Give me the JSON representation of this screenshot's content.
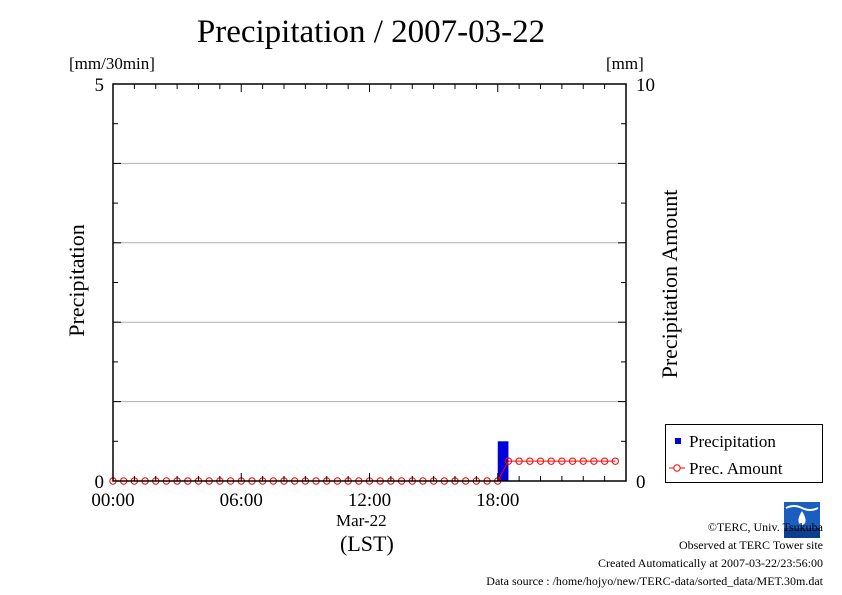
{
  "title": "Precipitation / 2007-03-22",
  "left_unit": "[mm/30min]",
  "right_unit": "[mm]",
  "left_axis_title": "Precipitation",
  "right_axis_title": "Precipitation Amount",
  "x_date_label": "Mar-22",
  "x_tz_label": "(LST)",
  "legend": {
    "precipitation": "Precipitation",
    "amount": "Prec. Amount"
  },
  "credits": {
    "copyright": "©TERC, Univ. Tsukuba",
    "observed": "Observed at TERC Tower site",
    "created": "Created Automatically at 2007-03-22/23:56:00",
    "source": "Data source : /home/hojyo/new/TERC-data/sorted_data/MET.30m.dat"
  },
  "logo_text": "TERC",
  "colors": {
    "precipitation_bar": "#0000dd",
    "amount_line": "#ff0000",
    "grid": "#b0b0b0"
  },
  "chart_data": {
    "type": "bar+line",
    "title": "Precipitation / 2007-03-22",
    "xlabel": "Mar-22 (LST)",
    "x_ticks": [
      "00:00",
      "06:00",
      "12:00",
      "18:00"
    ],
    "x_range_hours": [
      0,
      24
    ],
    "y_left": {
      "label": "Precipitation",
      "unit": "[mm/30min]",
      "lim": [
        0,
        5
      ],
      "ticks": [
        "0",
        "5"
      ]
    },
    "y_right": {
      "label": "Precipitation Amount",
      "unit": "[mm]",
      "lim": [
        0,
        10
      ],
      "ticks": [
        "0",
        "10"
      ]
    },
    "grid": true,
    "legend_position": "bottom-right",
    "series": [
      {
        "name": "Precipitation",
        "type": "bar",
        "axis": "left",
        "times_hours": [
          18.0
        ],
        "values": [
          0.5
        ]
      },
      {
        "name": "Prec. Amount",
        "type": "line",
        "axis": "right",
        "marker": "open-circle",
        "times_hours": [
          0.0,
          0.5,
          1.0,
          1.5,
          2.0,
          2.5,
          3.0,
          3.5,
          4.0,
          4.5,
          5.0,
          5.5,
          6.0,
          6.5,
          7.0,
          7.5,
          8.0,
          8.5,
          9.0,
          9.5,
          10.0,
          10.5,
          11.0,
          11.5,
          12.0,
          12.5,
          13.0,
          13.5,
          14.0,
          14.5,
          15.0,
          15.5,
          16.0,
          16.5,
          17.0,
          17.5,
          18.0,
          18.5,
          19.0,
          19.5,
          20.0,
          20.5,
          21.0,
          21.5,
          22.0,
          22.5,
          23.0,
          23.5
        ],
        "values": [
          0,
          0,
          0,
          0,
          0,
          0,
          0,
          0,
          0,
          0,
          0,
          0,
          0,
          0,
          0,
          0,
          0,
          0,
          0,
          0,
          0,
          0,
          0,
          0,
          0,
          0,
          0,
          0,
          0,
          0,
          0,
          0,
          0,
          0,
          0,
          0,
          0,
          0.5,
          0.5,
          0.5,
          0.5,
          0.5,
          0.5,
          0.5,
          0.5,
          0.5,
          0.5,
          0.5
        ]
      }
    ]
  }
}
